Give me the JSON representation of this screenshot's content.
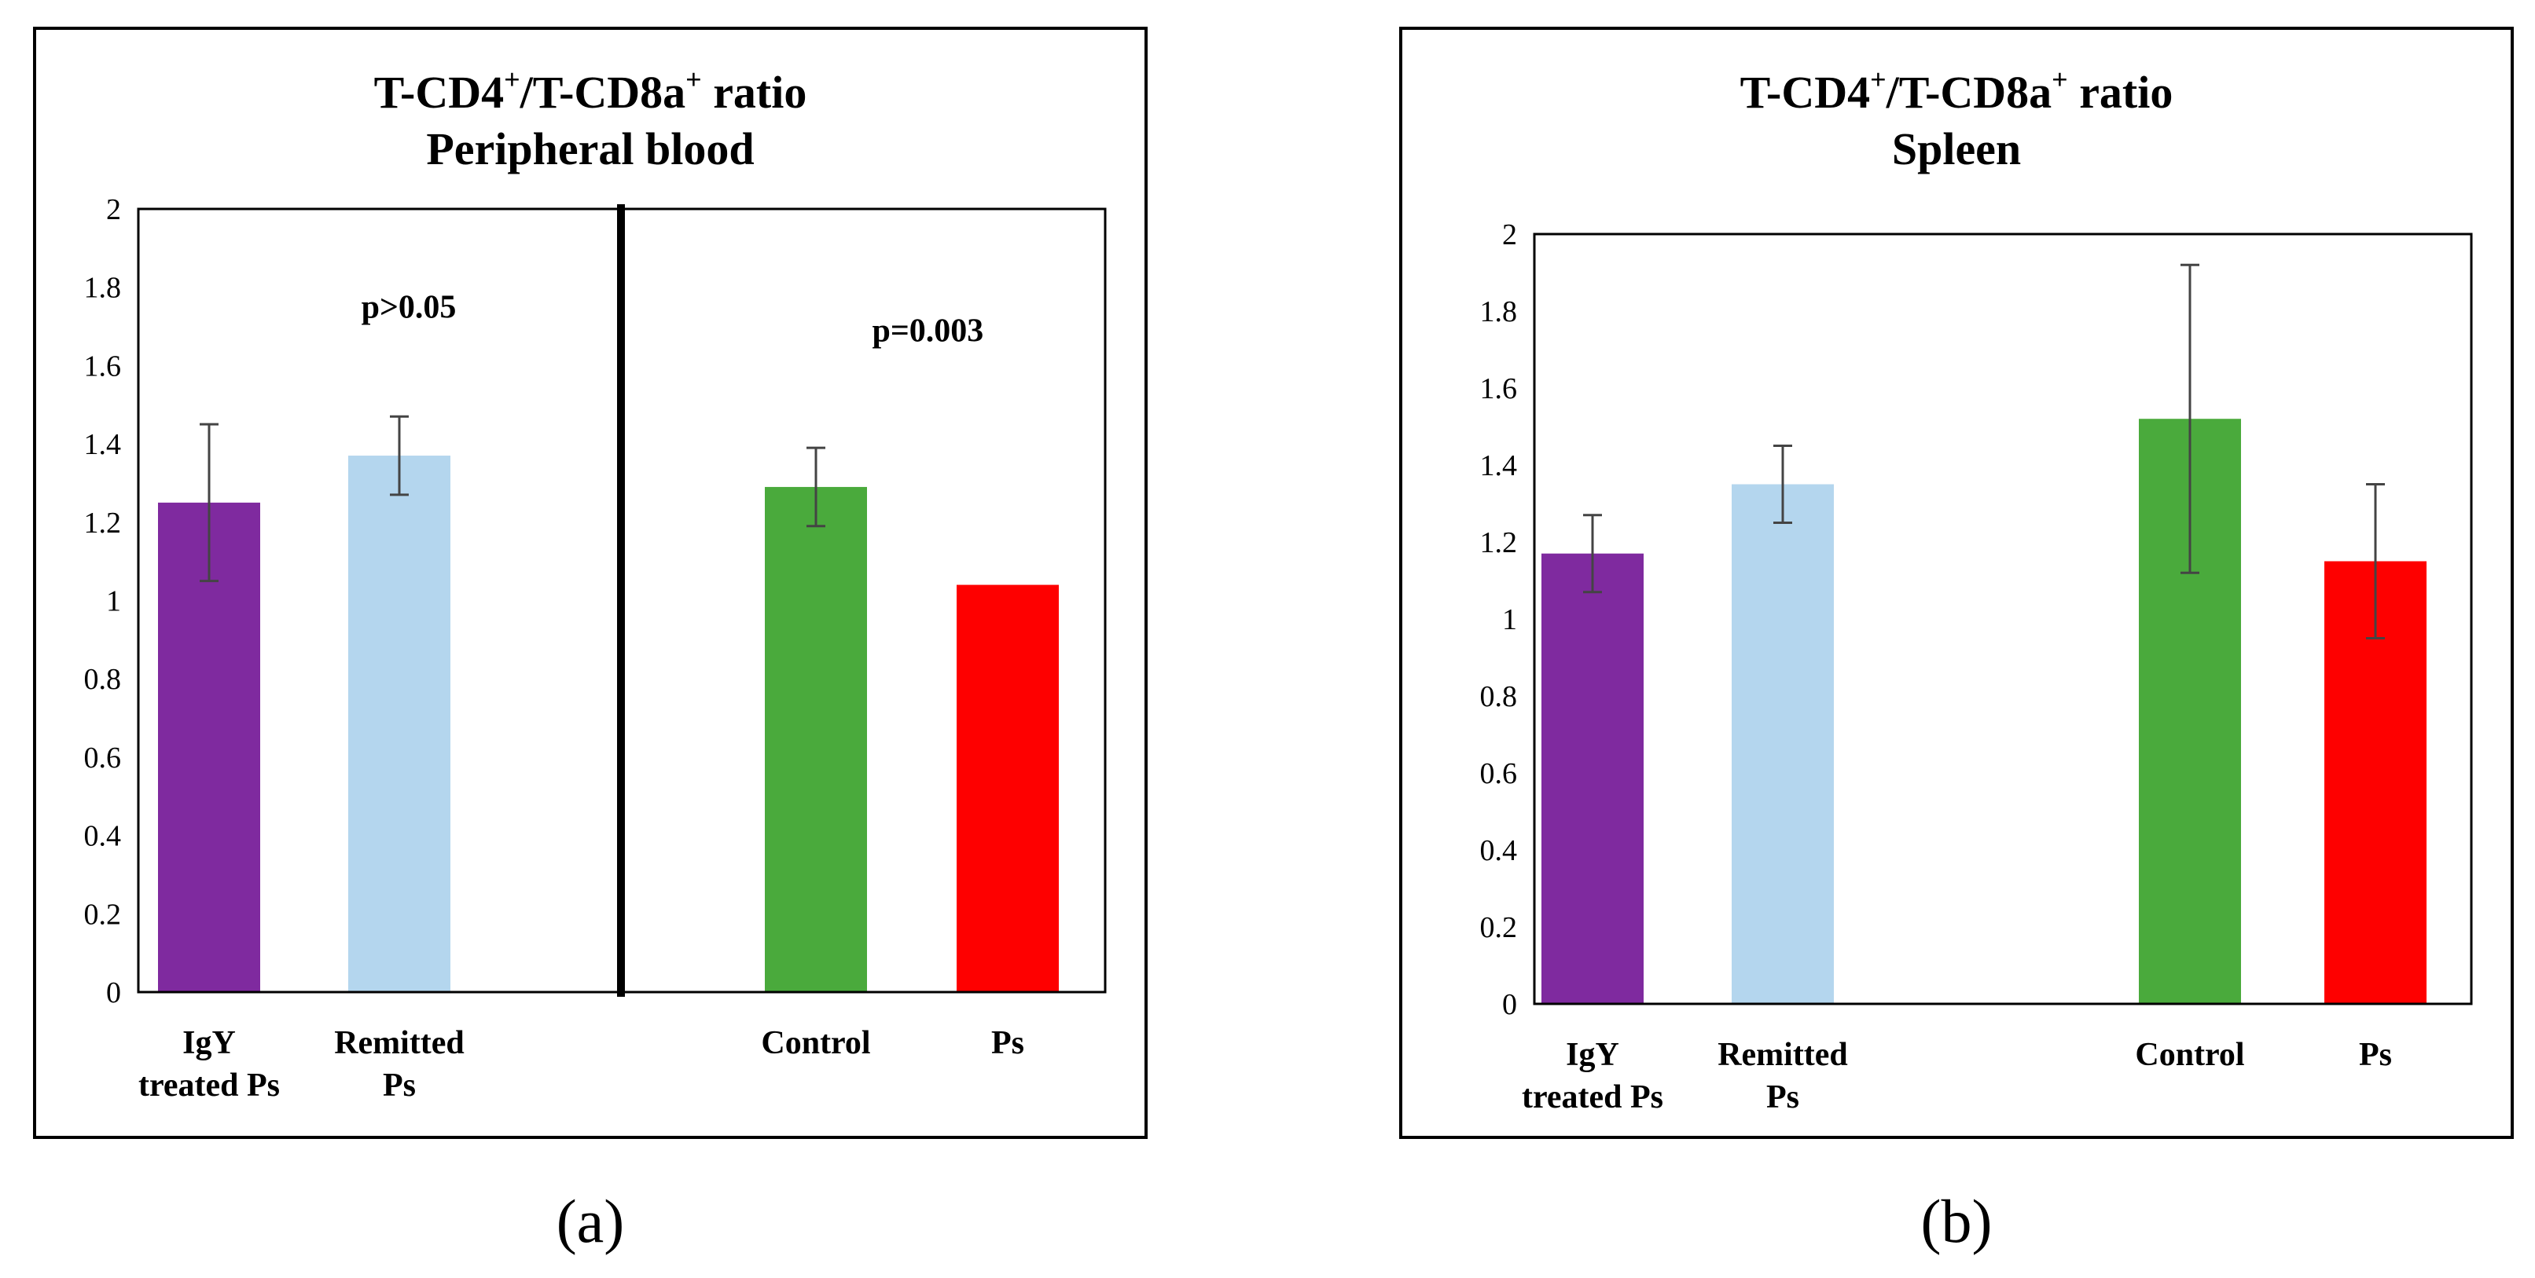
{
  "captions": {
    "a": "(a)",
    "b": "(b)"
  },
  "colors": {
    "purple": "#7f2a9f",
    "lightblue": "#b4d6ee",
    "green": "#4aaa3c",
    "red": "#fe0000",
    "errorbar": "#444444"
  },
  "chart_data": [
    {
      "id": "a",
      "type": "bar",
      "title_line1_prefix": "T-CD4",
      "title_sup1": "+",
      "title_mid": "/T-CD8a",
      "title_sup2": "+",
      "title_suffix": " ratio",
      "title_line2": "Peripheral blood",
      "ylim": [
        0,
        2
      ],
      "yticks": [
        "0",
        "0.2",
        "0.4",
        "0.6",
        "0.8",
        "1",
        "1.2",
        "1.4",
        "1.6",
        "1.8",
        "2"
      ],
      "ytick_values": [
        0,
        0.2,
        0.4,
        0.6,
        0.8,
        1,
        1.2,
        1.4,
        1.6,
        1.8,
        2
      ],
      "categories": [
        {
          "lines": [
            "IgY",
            "treated Ps"
          ],
          "value": 1.25,
          "error": 0.2,
          "color": "#7f2a9f"
        },
        {
          "lines": [
            "Remitted",
            "Ps"
          ],
          "value": 1.37,
          "error": 0.1,
          "color": "#b4d6ee"
        },
        {
          "lines": [
            "Control"
          ],
          "value": 1.29,
          "error": 0.1,
          "color": "#4aaa3c"
        },
        {
          "lines": [
            "Ps"
          ],
          "value": 1.04,
          "error": 0,
          "color": "#fe0000"
        }
      ],
      "annotations": [
        {
          "text": "p>0.05",
          "x": 0.75,
          "y": 1.75
        },
        {
          "text": "p=0.003",
          "x": 2.7,
          "y": 1.69
        }
      ],
      "divider_after_category": 2
    },
    {
      "id": "b",
      "type": "bar",
      "title_line1_prefix": "T-CD4",
      "title_sup1": "+",
      "title_mid": "/T-CD8a",
      "title_sup2": "+",
      "title_suffix": " ratio",
      "title_line2": "Spleen",
      "ylim": [
        0,
        2
      ],
      "yticks": [
        "0",
        "0.2",
        "0.4",
        "0.6",
        "0.8",
        "1",
        "1.2",
        "1.4",
        "1.6",
        "1.8",
        "2"
      ],
      "ytick_values": [
        0,
        0.2,
        0.4,
        0.6,
        0.8,
        1,
        1.2,
        1.4,
        1.6,
        1.8,
        2
      ],
      "categories": [
        {
          "lines": [
            "IgY",
            "treated Ps"
          ],
          "value": 1.17,
          "error": 0.1,
          "color": "#7f2a9f"
        },
        {
          "lines": [
            "Remitted",
            "Ps"
          ],
          "value": 1.35,
          "error": 0.1,
          "color": "#b4d6ee"
        },
        {
          "lines": [
            "Control"
          ],
          "value": 1.52,
          "error": 0.4,
          "color": "#4aaa3c"
        },
        {
          "lines": [
            "Ps"
          ],
          "value": 1.15,
          "error": 0.2,
          "color": "#fe0000"
        }
      ],
      "annotations": [],
      "divider_after_category": null
    }
  ]
}
